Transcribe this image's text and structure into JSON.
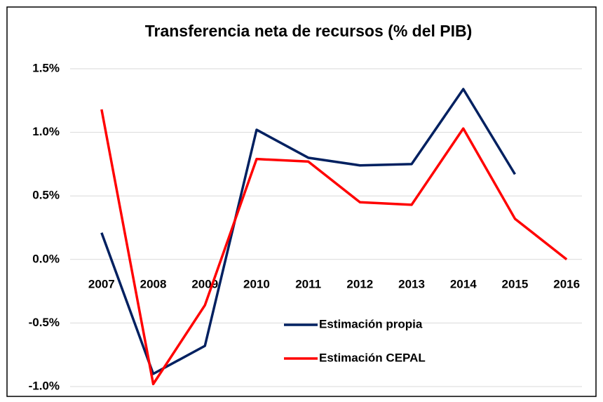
{
  "chart_data": {
    "type": "line",
    "title": "Transferencia neta de recursos (% del PIB)",
    "categories": [
      "2007",
      "2008",
      "2009",
      "2010",
      "2011",
      "2012",
      "2013",
      "2014",
      "2015",
      "2016"
    ],
    "series": [
      {
        "name": "Estimación propia",
        "color": "#002060",
        "values": [
          0.21,
          -0.9,
          -0.68,
          1.02,
          0.8,
          0.74,
          0.75,
          1.34,
          0.67,
          null
        ]
      },
      {
        "name": "Estimación CEPAL",
        "color": "#ff0000",
        "values": [
          1.18,
          -0.98,
          -0.36,
          0.79,
          0.77,
          0.45,
          0.43,
          1.03,
          0.32,
          0.0
        ]
      }
    ],
    "ylim": [
      -1.0,
      1.5
    ],
    "yticks": [
      {
        "value": -1.0,
        "label": "-1.0%"
      },
      {
        "value": -0.5,
        "label": "-0.5%"
      },
      {
        "value": 0.0,
        "label": "0.0%"
      },
      {
        "value": 0.5,
        "label": "0.5%"
      },
      {
        "value": 1.0,
        "label": "1.0%"
      },
      {
        "value": 1.5,
        "label": "1.5%"
      }
    ],
    "grid": true,
    "legend": "bottom"
  }
}
